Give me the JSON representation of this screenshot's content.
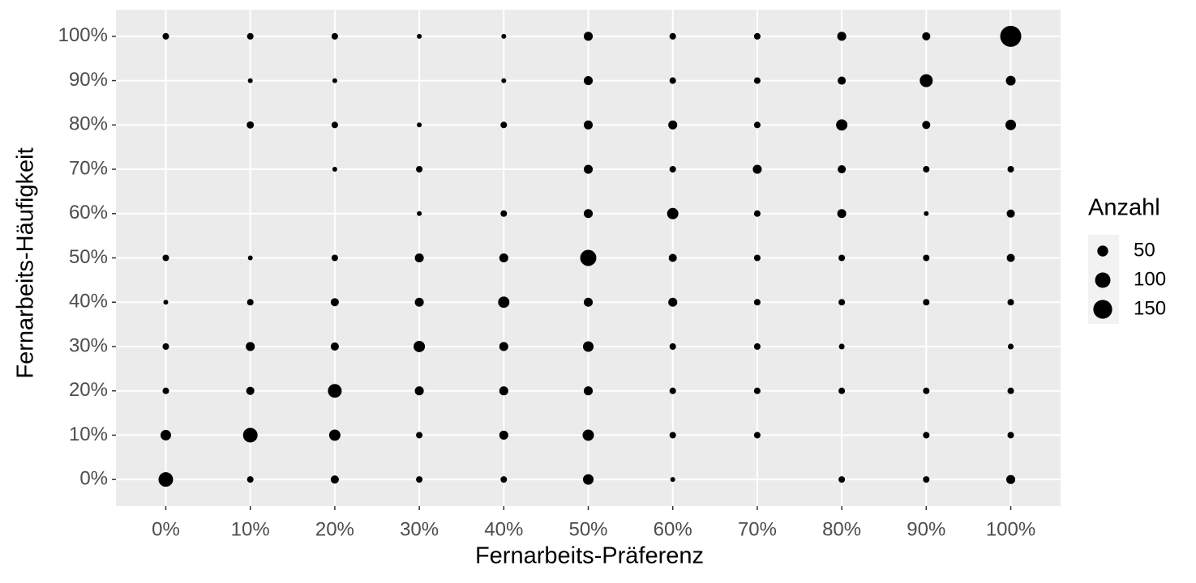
{
  "chart_data": {
    "type": "scatter",
    "x_label": "Fernarbeits-Präferenz",
    "y_label": "Fernarbeits-Häufigkeit",
    "xlim": [
      -5.9,
      105.9
    ],
    "ylim": [
      -6,
      106
    ],
    "xticks": [
      {
        "value": 0,
        "label": "0%"
      },
      {
        "value": 10,
        "label": "10%"
      },
      {
        "value": 20,
        "label": "20%"
      },
      {
        "value": 30,
        "label": "30%"
      },
      {
        "value": 40,
        "label": "40%"
      },
      {
        "value": 50,
        "label": "50%"
      },
      {
        "value": 60,
        "label": "60%"
      },
      {
        "value": 70,
        "label": "70%"
      },
      {
        "value": 80,
        "label": "80%"
      },
      {
        "value": 90,
        "label": "90%"
      },
      {
        "value": 100,
        "label": "100%"
      }
    ],
    "yticks": [
      {
        "value": 0,
        "label": "0%"
      },
      {
        "value": 10,
        "label": "10%"
      },
      {
        "value": 20,
        "label": "20%"
      },
      {
        "value": 30,
        "label": "30%"
      },
      {
        "value": 40,
        "label": "40%"
      },
      {
        "value": 50,
        "label": "50%"
      },
      {
        "value": 60,
        "label": "60%"
      },
      {
        "value": 70,
        "label": "70%"
      },
      {
        "value": 80,
        "label": "80%"
      },
      {
        "value": 90,
        "label": "90%"
      },
      {
        "value": 100,
        "label": "100%"
      }
    ],
    "grid": true,
    "color": "#000000",
    "x": [
      0,
      0,
      0,
      0,
      0,
      0,
      0,
      10,
      10,
      10,
      10,
      10,
      10,
      10,
      10,
      10,
      20,
      20,
      20,
      20,
      20,
      20,
      20,
      20,
      20,
      20,
      30,
      30,
      30,
      30,
      30,
      30,
      30,
      30,
      30,
      30,
      40,
      40,
      40,
      40,
      40,
      40,
      40,
      40,
      40,
      40,
      50,
      50,
      50,
      50,
      50,
      50,
      50,
      50,
      50,
      50,
      50,
      60,
      60,
      60,
      60,
      60,
      60,
      60,
      60,
      60,
      60,
      60,
      70,
      70,
      70,
      70,
      70,
      70,
      70,
      70,
      70,
      70,
      80,
      80,
      80,
      80,
      80,
      80,
      80,
      80,
      80,
      80,
      90,
      90,
      90,
      90,
      90,
      90,
      90,
      90,
      90,
      90,
      100,
      100,
      100,
      100,
      100,
      100,
      100,
      100,
      100,
      100,
      100
    ],
    "y": [
      100,
      50,
      40,
      30,
      20,
      10,
      0,
      100,
      90,
      80,
      50,
      40,
      30,
      20,
      10,
      0,
      100,
      90,
      80,
      70,
      50,
      40,
      30,
      20,
      10,
      0,
      100,
      80,
      70,
      60,
      50,
      40,
      30,
      20,
      10,
      0,
      100,
      90,
      80,
      60,
      50,
      40,
      30,
      20,
      10,
      0,
      100,
      90,
      80,
      70,
      60,
      50,
      40,
      30,
      20,
      10,
      0,
      100,
      90,
      80,
      70,
      60,
      50,
      40,
      30,
      20,
      10,
      0,
      100,
      90,
      80,
      70,
      60,
      50,
      40,
      30,
      20,
      10,
      100,
      90,
      80,
      70,
      60,
      50,
      40,
      30,
      20,
      0,
      100,
      90,
      80,
      70,
      60,
      50,
      40,
      20,
      10,
      0,
      100,
      90,
      80,
      70,
      60,
      50,
      40,
      30,
      20,
      10,
      0
    ],
    "size": [
      18,
      18,
      10,
      18,
      18,
      47,
      90,
      18,
      10,
      22,
      10,
      18,
      34,
      28,
      90,
      18,
      18,
      10,
      18,
      10,
      18,
      28,
      28,
      80,
      54,
      28,
      10,
      10,
      18,
      10,
      34,
      34,
      54,
      34,
      18,
      18,
      10,
      10,
      18,
      18,
      34,
      54,
      34,
      34,
      34,
      18,
      34,
      34,
      34,
      34,
      34,
      110,
      34,
      47,
      34,
      54,
      47,
      18,
      18,
      34,
      18,
      54,
      28,
      34,
      18,
      18,
      18,
      10,
      18,
      18,
      18,
      34,
      18,
      18,
      18,
      18,
      18,
      18,
      34,
      28,
      54,
      28,
      34,
      18,
      18,
      14,
      18,
      18,
      28,
      71,
      28,
      18,
      10,
      18,
      18,
      18,
      18,
      18,
      187,
      40,
      47,
      18,
      28,
      28,
      18,
      14,
      18,
      18,
      34
    ],
    "size_legend": {
      "title": "Anzahl",
      "values": [
        50,
        100,
        150
      ]
    }
  }
}
